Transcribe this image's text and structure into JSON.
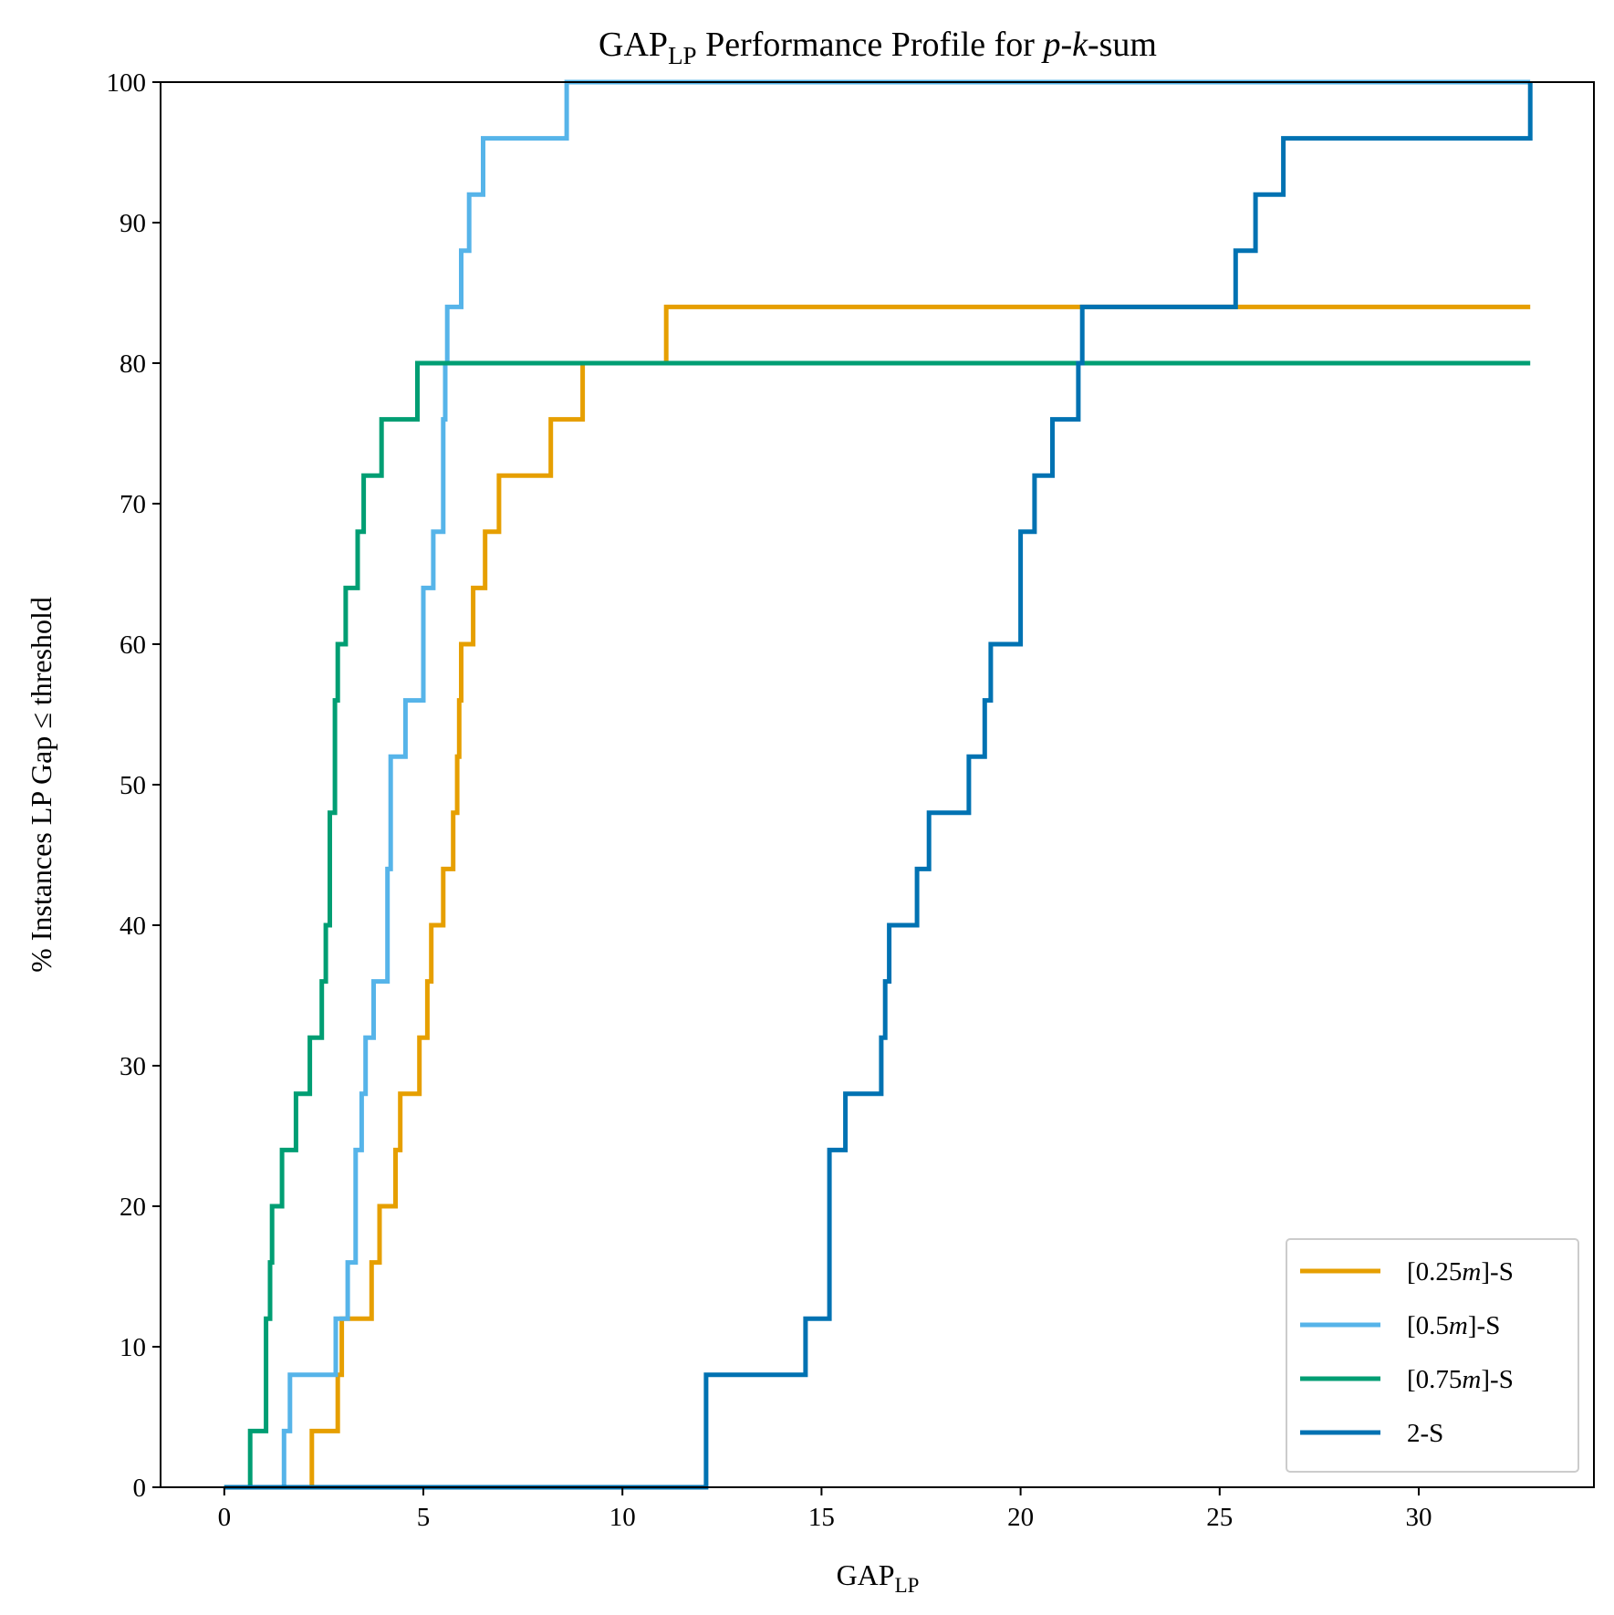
{
  "chart_data": {
    "type": "line",
    "step": true,
    "title": {
      "main": "GAP",
      "sub": "LP",
      "rest": " Performance Profile for ",
      "italic1": "p",
      "sep": "-",
      "italic2": "k",
      "tail": "-sum"
    },
    "xlabel": {
      "main": "GAP",
      "sub": "LP"
    },
    "ylabel": "% Instances LP Gap ≤ threshold",
    "xlim": [
      -1.6,
      34.4
    ],
    "ylim": [
      0,
      100
    ],
    "xticks": [
      0,
      5,
      10,
      15,
      20,
      25,
      30
    ],
    "yticks": [
      0,
      10,
      20,
      30,
      40,
      50,
      60,
      70,
      80,
      90,
      100
    ],
    "legend_position": "lower-right",
    "series": [
      {
        "name": "[0.25m]-S",
        "legend": {
          "pre": "[0.25",
          "it": "m",
          "post": "]-S"
        },
        "color": "#E69F00",
        "x": [
          0,
          2.2,
          2.2,
          2.85,
          2.85,
          2.95,
          2.95,
          3.7,
          3.7,
          3.9,
          3.9,
          4.3,
          4.3,
          4.42,
          4.42,
          4.9,
          4.9,
          5.1,
          5.1,
          5.2,
          5.2,
          5.5,
          5.5,
          5.75,
          5.75,
          5.85,
          5.85,
          5.9,
          5.9,
          5.95,
          5.95,
          6.25,
          6.25,
          6.55,
          6.55,
          6.9,
          6.9,
          8.2,
          8.2,
          9.0,
          9.0,
          11.1,
          11.1,
          32.8
        ],
        "y": [
          0,
          0,
          4,
          4,
          8,
          8,
          12,
          12,
          16,
          16,
          20,
          20,
          24,
          24,
          28,
          28,
          32,
          32,
          36,
          36,
          40,
          40,
          44,
          44,
          48,
          48,
          52,
          52,
          56,
          56,
          60,
          60,
          64,
          64,
          68,
          68,
          72,
          72,
          76,
          76,
          80,
          80,
          84,
          84
        ]
      },
      {
        "name": "[0.5m]-S",
        "legend": {
          "pre": "[0.5",
          "it": "m",
          "post": "]-S"
        },
        "color": "#56B4E9",
        "x": [
          0,
          1.5,
          1.5,
          1.65,
          1.65,
          2.8,
          2.8,
          3.1,
          3.1,
          3.3,
          3.3,
          3.45,
          3.45,
          3.55,
          3.55,
          3.75,
          3.75,
          4.1,
          4.1,
          4.18,
          4.18,
          4.55,
          4.55,
          5.0,
          5.0,
          5.25,
          5.25,
          5.5,
          5.5,
          5.55,
          5.55,
          5.6,
          5.6,
          5.95,
          5.95,
          6.15,
          6.15,
          6.5,
          6.5,
          8.6,
          8.6,
          32.8
        ],
        "y": [
          0,
          0,
          4,
          4,
          8,
          8,
          12,
          12,
          16,
          16,
          24,
          24,
          28,
          28,
          32,
          32,
          36,
          36,
          44,
          44,
          52,
          52,
          56,
          56,
          64,
          64,
          68,
          68,
          76,
          76,
          80,
          80,
          84,
          84,
          88,
          88,
          92,
          92,
          96,
          96,
          100,
          100
        ]
      },
      {
        "name": "[0.75m]-S",
        "legend": {
          "pre": "[0.75",
          "it": "m",
          "post": "]-S"
        },
        "color": "#009E73",
        "x": [
          0,
          0.65,
          0.65,
          1.05,
          1.05,
          1.15,
          1.15,
          1.2,
          1.2,
          1.45,
          1.45,
          1.8,
          1.8,
          2.15,
          2.15,
          2.45,
          2.45,
          2.55,
          2.55,
          2.65,
          2.65,
          2.78,
          2.78,
          2.85,
          2.85,
          3.05,
          3.05,
          3.35,
          3.35,
          3.5,
          3.5,
          3.95,
          3.95,
          4.85,
          4.85,
          5.6,
          5.6,
          32.8
        ],
        "y": [
          0,
          0,
          4,
          4,
          12,
          12,
          16,
          16,
          20,
          20,
          24,
          24,
          28,
          28,
          32,
          32,
          36,
          36,
          40,
          40,
          48,
          48,
          56,
          56,
          60,
          60,
          64,
          64,
          68,
          68,
          72,
          72,
          76,
          76,
          80,
          80,
          80,
          80
        ]
      },
      {
        "name": "2-S",
        "legend": {
          "pre": "2-S",
          "it": "",
          "post": ""
        },
        "color": "#0072B2",
        "x": [
          0,
          12.1,
          12.1,
          14.6,
          14.6,
          15.2,
          15.2,
          15.6,
          15.6,
          16.5,
          16.5,
          16.6,
          16.6,
          16.7,
          16.7,
          17.4,
          17.4,
          17.7,
          17.7,
          18.7,
          18.7,
          19.1,
          19.1,
          19.25,
          19.25,
          20.0,
          20.0,
          20.35,
          20.35,
          20.8,
          20.8,
          21.45,
          21.45,
          21.55,
          21.55,
          21.95,
          21.95,
          25.4,
          25.4,
          25.9,
          25.9,
          26.6,
          26.6,
          32.8,
          32.8
        ],
        "y": [
          0,
          0,
          8,
          8,
          12,
          12,
          24,
          24,
          28,
          28,
          32,
          32,
          36,
          36,
          40,
          40,
          44,
          44,
          48,
          48,
          52,
          52,
          56,
          56,
          60,
          60,
          68,
          68,
          72,
          72,
          76,
          76,
          80,
          80,
          84,
          84,
          84,
          84,
          88,
          88,
          92,
          92,
          96,
          96,
          100
        ]
      }
    ]
  }
}
